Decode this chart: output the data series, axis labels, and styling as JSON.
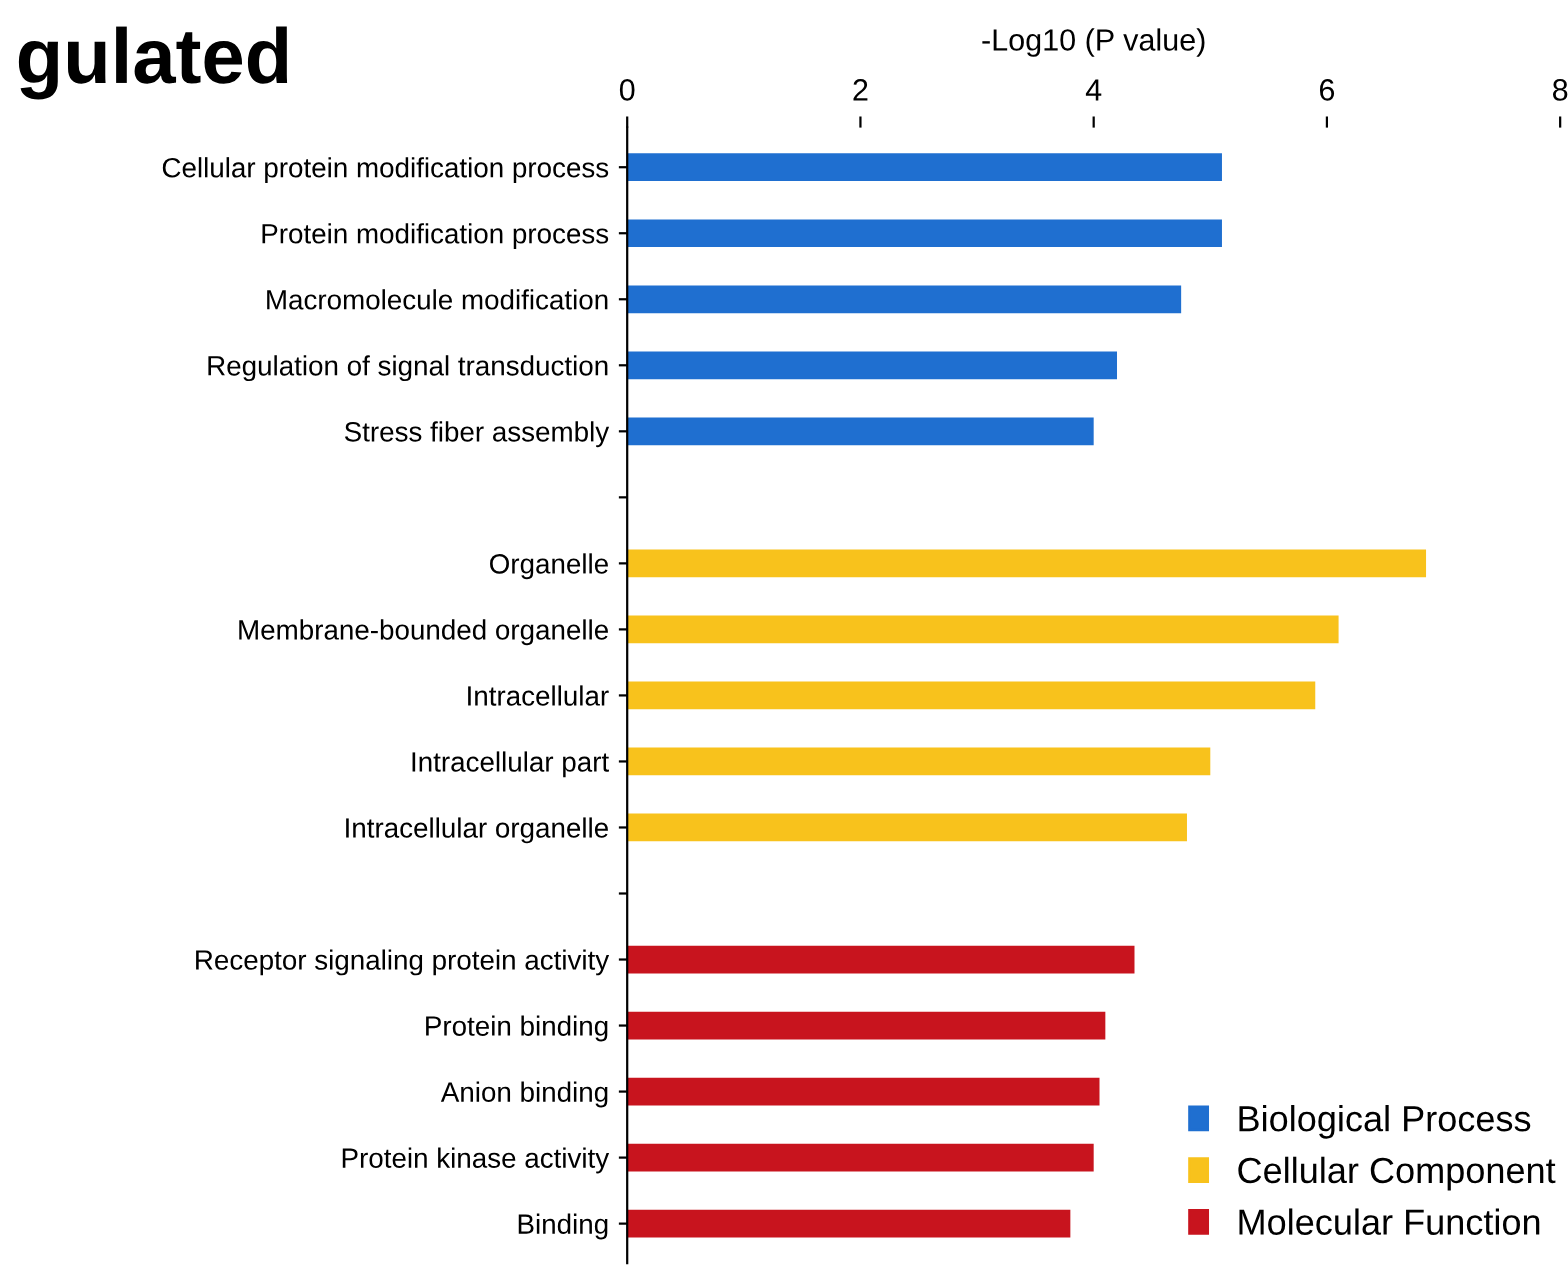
{
  "chart_data": {
    "type": "bar",
    "orientation": "horizontal",
    "title": "gulated",
    "xlabel": "-Log10 (P value)",
    "categories": [
      "Cellular protein modification process",
      "Protein modification process",
      "Macromolecule modification",
      "Regulation of signal transduction",
      "Stress fiber assembly",
      null,
      "Organelle",
      "Membrane-bounded organelle",
      "Intracellular",
      "Intracellular part",
      "Intracellular organelle",
      null,
      "Receptor signaling protein activity",
      "Protein binding",
      "Anion binding",
      "Protein kinase activity",
      "Binding"
    ],
    "series": [
      {
        "name": "Biological Process",
        "color": "#1f6fd0",
        "values": [
          5.1,
          5.1,
          4.75,
          4.2,
          4.0,
          null,
          null,
          null,
          null,
          null,
          null,
          null,
          null,
          null,
          null,
          null,
          null
        ]
      },
      {
        "name": "Cellular Component",
        "color": "#f8c21c",
        "values": [
          null,
          null,
          null,
          null,
          null,
          null,
          6.85,
          6.1,
          5.9,
          5.0,
          4.8,
          null,
          null,
          null,
          null,
          null,
          null
        ]
      },
      {
        "name": "Molecular Function",
        "color": "#c8141e",
        "values": [
          null,
          null,
          null,
          null,
          null,
          null,
          null,
          null,
          null,
          null,
          null,
          null,
          4.35,
          4.1,
          4.05,
          4.0,
          3.8
        ]
      }
    ],
    "xlim": [
      0,
      8
    ],
    "xticks": [
      0,
      2,
      4,
      6,
      8
    ],
    "legend": "bottom right",
    "grid": false
  }
}
